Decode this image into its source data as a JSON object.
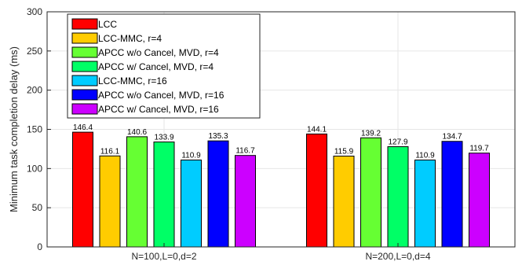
{
  "chart_data": {
    "type": "bar",
    "title": "",
    "xlabel": "",
    "ylabel": "Minimum task completion delay (ms)",
    "ylim": [
      0,
      300
    ],
    "yticks": [
      0,
      50,
      100,
      150,
      200,
      250,
      300
    ],
    "grid": true,
    "legend_position": "top-left",
    "categories": [
      "N=100,L=0,d=2",
      "N=200,L=0,d=4"
    ],
    "series": [
      {
        "name": "LCC",
        "color": "#ff0000",
        "values": [
          146.4,
          144.1
        ],
        "labels": [
          "146.4",
          "144.1"
        ]
      },
      {
        "name": "LCC-MMC, r=4",
        "color": "#ffcc00",
        "values": [
          116.1,
          115.9
        ],
        "labels": [
          "116.1",
          "115.9"
        ]
      },
      {
        "name": "APCC w/o Cancel, MVD, r=4",
        "color": "#66ff33",
        "values": [
          140.6,
          139.2
        ],
        "labels": [
          "140.6",
          "139.2"
        ]
      },
      {
        "name": "APCC w/ Cancel, MVD, r=4",
        "color": "#00ff66",
        "values": [
          133.9,
          127.9
        ],
        "labels": [
          "133.9",
          "127.9"
        ]
      },
      {
        "name": "LCC-MMC, r=16",
        "color": "#00ccff",
        "values": [
          110.9,
          110.9
        ],
        "labels": [
          "110.9",
          "110.9"
        ]
      },
      {
        "name": "APCC w/o Cancel, MVD, r=16",
        "color": "#0000ff",
        "values": [
          135.3,
          134.7
        ],
        "labels": [
          "135.3",
          "134.7"
        ]
      },
      {
        "name": "APCC w/ Cancel, MVD, r=16",
        "color": "#cc00ff",
        "values": [
          116.7,
          119.7
        ],
        "labels": [
          "116.7",
          "119.7"
        ]
      }
    ]
  }
}
